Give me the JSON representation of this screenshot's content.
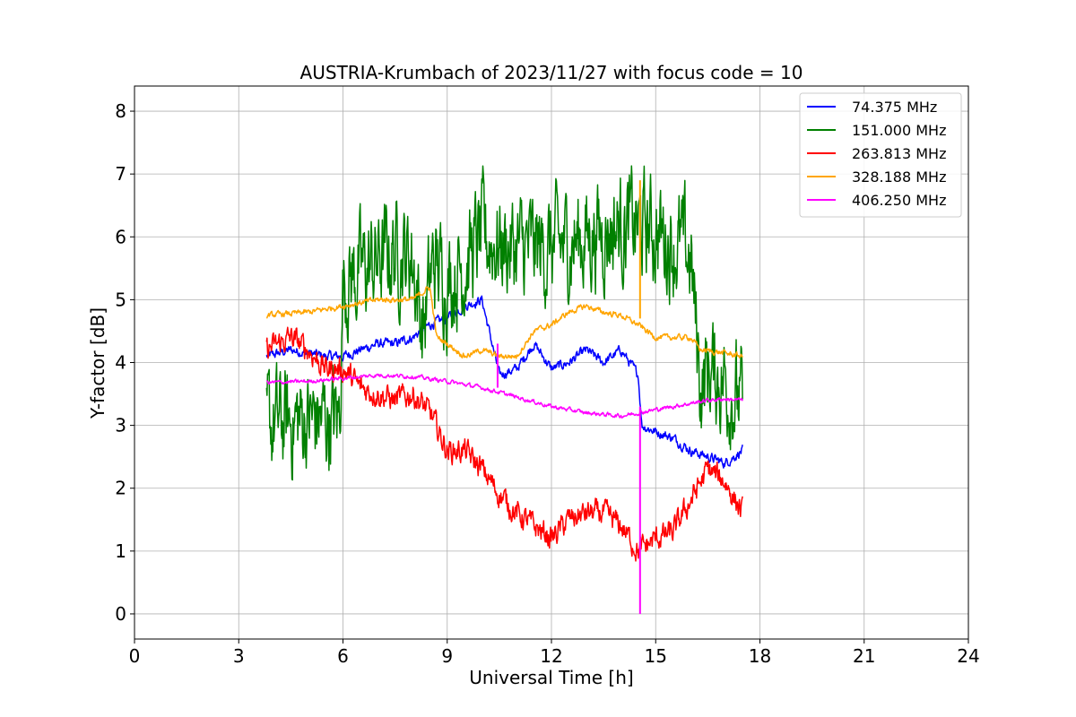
{
  "chart_data": {
    "type": "line",
    "title": "AUSTRIA-Krumbach of 2023/11/27 with focus code = 10",
    "xlabel": "Universal Time [h]",
    "ylabel": "Y-factor [dB]",
    "xlim": [
      0,
      24
    ],
    "ylim": [
      -0.4,
      8.4
    ],
    "xticks": [
      0,
      3,
      6,
      9,
      12,
      15,
      18,
      21,
      24
    ],
    "xtick_labels": [
      "0",
      "3",
      "6",
      "9",
      "12",
      "15",
      "18",
      "21",
      "24"
    ],
    "yticks": [
      0,
      1,
      2,
      3,
      4,
      5,
      6,
      7,
      8
    ],
    "ytick_labels": [
      "0",
      "1",
      "2",
      "3",
      "4",
      "5",
      "6",
      "7",
      "8"
    ],
    "grid": true,
    "legend_position": "top-right",
    "series": [
      {
        "name": "74.375 MHz",
        "legend_label": " 74.375 MHz",
        "color": "#0000ff",
        "noise": 0.12,
        "x": [
          3.8,
          4.5,
          5.5,
          6.0,
          6.5,
          7.0,
          7.5,
          8.0,
          8.5,
          9.0,
          9.5,
          10.0,
          10.5,
          11.0,
          11.5,
          12.0,
          12.5,
          13.0,
          13.5,
          14.0,
          14.5,
          14.6,
          15.0,
          15.5,
          16.0,
          16.5,
          17.0,
          17.5
        ],
        "y": [
          4.1,
          4.2,
          4.1,
          4.1,
          4.2,
          4.3,
          4.3,
          4.4,
          4.6,
          4.7,
          4.9,
          5.0,
          3.8,
          3.9,
          4.3,
          3.9,
          4.0,
          4.2,
          4.0,
          4.2,
          3.8,
          3.0,
          2.9,
          2.8,
          2.6,
          2.5,
          2.4,
          2.6
        ]
      },
      {
        "name": "151.000 MHz",
        "legend_label": "151.000 MHz",
        "color": "#008000",
        "noise": 1.3,
        "x": [
          3.8,
          5.0,
          5.9,
          6.0,
          7.0,
          7.5,
          8.0,
          8.3,
          8.6,
          9.0,
          9.5,
          10.0,
          10.5,
          11.0,
          12.0,
          13.0,
          14.0,
          15.0,
          16.0,
          16.3,
          16.5,
          17.0,
          17.5
        ],
        "y": [
          3.0,
          3.1,
          3.1,
          5.3,
          5.6,
          5.8,
          5.7,
          4.5,
          5.6,
          5.3,
          5.6,
          6.0,
          5.9,
          5.8,
          5.8,
          6.0,
          6.2,
          6.1,
          5.7,
          3.6,
          3.9,
          3.7,
          3.3
        ]
      },
      {
        "name": "263.813 MHz",
        "legend_label": "263.813 MHz",
        "color": "#ff0000",
        "noise": 0.3,
        "x": [
          3.8,
          4.5,
          5.0,
          5.5,
          6.0,
          6.5,
          7.0,
          7.5,
          8.0,
          8.5,
          9.0,
          9.5,
          10.0,
          10.5,
          11.0,
          11.5,
          12.0,
          12.5,
          13.0,
          13.5,
          14.0,
          14.5,
          15.0,
          15.5,
          16.0,
          16.5,
          17.0,
          17.5
        ],
        "y": [
          4.2,
          4.4,
          4.2,
          3.9,
          3.9,
          3.6,
          3.5,
          3.4,
          3.5,
          3.2,
          2.6,
          2.6,
          2.3,
          1.9,
          1.6,
          1.4,
          1.2,
          1.5,
          1.6,
          1.6,
          1.4,
          1.0,
          1.2,
          1.3,
          1.8,
          2.3,
          2.1,
          1.6
        ]
      },
      {
        "name": "328.188 MHz",
        "legend_label": "328.188 MHz",
        "color": "#ffa500",
        "noise": 0.07,
        "x": [
          3.8,
          5.0,
          6.0,
          7.0,
          8.0,
          8.5,
          8.7,
          9.0,
          9.5,
          10.0,
          10.5,
          11.0,
          11.5,
          12.0,
          12.5,
          13.0,
          13.5,
          14.0,
          14.5,
          15.0,
          15.5,
          16.0,
          16.3,
          17.0,
          17.5
        ],
        "y": [
          4.75,
          4.8,
          4.9,
          5.0,
          5.0,
          5.2,
          4.4,
          4.3,
          4.1,
          4.2,
          4.1,
          4.1,
          4.5,
          4.6,
          4.8,
          4.9,
          4.8,
          4.75,
          4.6,
          4.4,
          4.4,
          4.4,
          4.2,
          4.15,
          4.1
        ]
      },
      {
        "name": "406.250 MHz",
        "legend_label": "406.250 MHz",
        "color": "#ff00ff",
        "noise": 0.05,
        "x": [
          3.8,
          5.0,
          6.0,
          7.0,
          8.0,
          9.0,
          10.0,
          11.0,
          12.0,
          13.0,
          14.0,
          14.5,
          15.0,
          15.5,
          16.0,
          16.5,
          17.0,
          17.5
        ],
        "y": [
          3.68,
          3.7,
          3.75,
          3.8,
          3.78,
          3.7,
          3.6,
          3.45,
          3.3,
          3.2,
          3.15,
          3.2,
          3.25,
          3.3,
          3.35,
          3.4,
          3.42,
          3.4
        ]
      }
    ],
    "spikes": [
      {
        "series": "328.188 MHz",
        "x": 14.55,
        "y_from": 4.7,
        "y_to": 6.9
      },
      {
        "series": "406.250 MHz",
        "x": 14.55,
        "y_from": 3.3,
        "y_to": 0.0
      },
      {
        "series": "406.250 MHz",
        "x": 10.45,
        "y_from": 3.6,
        "y_to": 4.3
      }
    ]
  }
}
